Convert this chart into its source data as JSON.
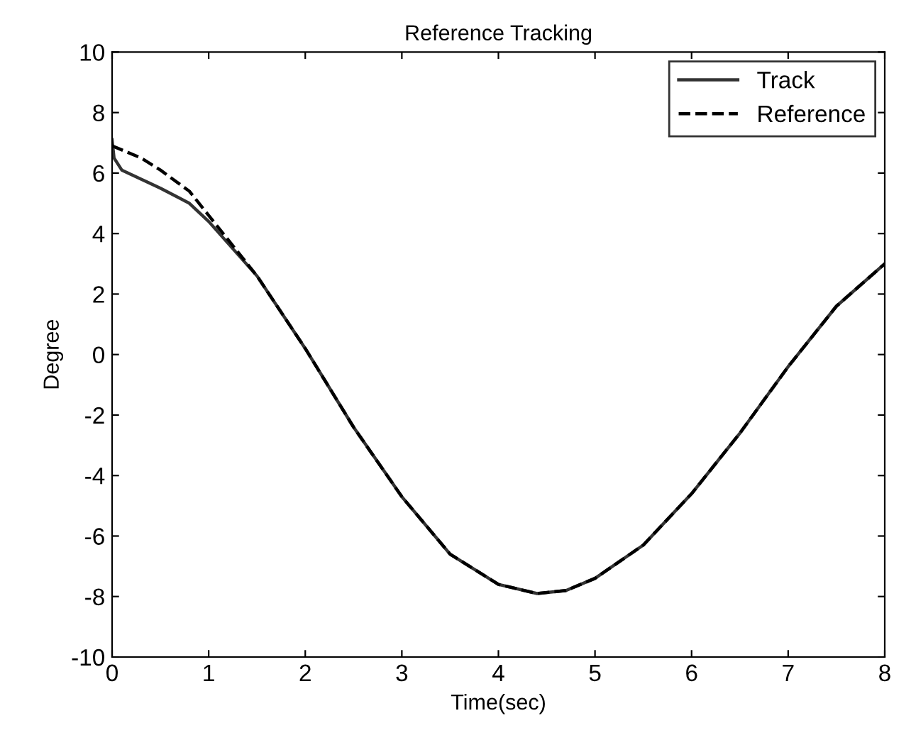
{
  "chart_data": {
    "type": "line",
    "title": "Reference Tracking",
    "xlabel": "Time(sec)",
    "ylabel": "Degree",
    "xlim": [
      0,
      8
    ],
    "ylim": [
      -10,
      10
    ],
    "xticks": [
      0,
      1,
      2,
      3,
      4,
      5,
      6,
      7,
      8
    ],
    "yticks": [
      -10,
      -8,
      -6,
      -4,
      -2,
      0,
      2,
      4,
      6,
      8,
      10
    ],
    "grid": false,
    "legend": "top right",
    "series": [
      {
        "name": "Track",
        "color": "#333333",
        "line_style": "solid",
        "x": [
          0,
          0.02,
          0.1,
          0.3,
          0.5,
          0.8,
          1.0,
          1.5,
          2.0,
          2.5,
          3.0,
          3.5,
          4.0,
          4.4,
          4.7,
          5.0,
          5.5,
          6.0,
          6.5,
          7.0,
          7.5,
          8.0
        ],
        "values": [
          7.1,
          6.5,
          6.1,
          5.8,
          5.5,
          5.0,
          4.4,
          2.6,
          0.2,
          -2.4,
          -4.7,
          -6.6,
          -7.6,
          -7.9,
          -7.8,
          -7.4,
          -6.3,
          -4.6,
          -2.6,
          -0.4,
          1.6,
          3.0
        ]
      },
      {
        "name": "Reference",
        "color": "#000000",
        "line_style": "dashed",
        "x": [
          0,
          0.3,
          0.5,
          0.8,
          1.0,
          1.5,
          2.0,
          2.5,
          3.0,
          3.5,
          4.0,
          4.4,
          4.7,
          5.0,
          5.5,
          6.0,
          6.5,
          7.0,
          7.5,
          8.0
        ],
        "values": [
          6.9,
          6.5,
          6.1,
          5.4,
          4.6,
          2.6,
          0.2,
          -2.4,
          -4.7,
          -6.6,
          -7.6,
          -7.9,
          -7.8,
          -7.4,
          -6.3,
          -4.6,
          -2.6,
          -0.4,
          1.6,
          3.0
        ]
      }
    ]
  }
}
